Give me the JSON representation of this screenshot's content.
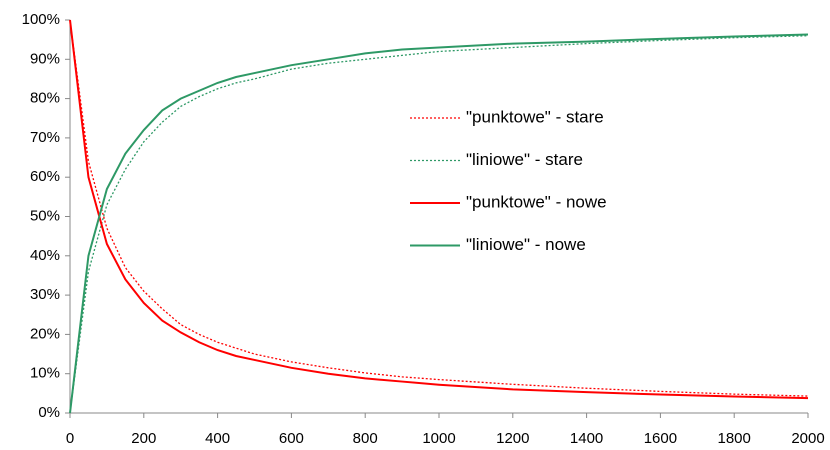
{
  "chart_data": {
    "type": "line",
    "x": [
      0,
      50,
      100,
      150,
      200,
      250,
      300,
      350,
      400,
      450,
      500,
      600,
      700,
      800,
      900,
      1000,
      1200,
      1400,
      1600,
      1800,
      2000
    ],
    "series": [
      {
        "name": "\"punktowe\" - stare",
        "color": "#ff0000",
        "dash": "dotted",
        "values": [
          100,
          64,
          47,
          37,
          31,
          26.5,
          22.5,
          20,
          18,
          16.5,
          15,
          13,
          11.5,
          10.2,
          9.2,
          8.5,
          7.3,
          6.3,
          5.5,
          4.8,
          4.3
        ]
      },
      {
        "name": "\"liniowe\" - stare",
        "color": "#2e9966",
        "dash": "dotted",
        "values": [
          0,
          36,
          53,
          62,
          69,
          74,
          78,
          80.5,
          82.5,
          84,
          85,
          87.5,
          89,
          90,
          91,
          92,
          93,
          94,
          94.8,
          95.5,
          96
        ]
      },
      {
        "name": "\"punktowe\" - nowe",
        "color": "#ff0000",
        "dash": "solid",
        "values": [
          100,
          60,
          43,
          34,
          28,
          23.5,
          20.5,
          18,
          16,
          14.5,
          13.5,
          11.5,
          10,
          8.8,
          8,
          7.2,
          6,
          5.3,
          4.7,
          4.2,
          3.8
        ]
      },
      {
        "name": "\"liniowe\" - nowe",
        "color": "#2e9966",
        "dash": "solid",
        "values": [
          0,
          40,
          57,
          66,
          72,
          77,
          80,
          82,
          84,
          85.5,
          86.5,
          88.5,
          90,
          91.5,
          92.5,
          93,
          94,
          94.5,
          95.2,
          95.8,
          96.3
        ]
      }
    ],
    "xlim": [
      0,
      2000
    ],
    "xticks": [
      0,
      200,
      400,
      600,
      800,
      1000,
      1200,
      1400,
      1600,
      1800,
      2000
    ],
    "ylim": [
      0,
      100
    ],
    "yticks": [
      {
        "value": 0,
        "label": "0%"
      },
      {
        "value": 10,
        "label": "10%"
      },
      {
        "value": 20,
        "label": "20%"
      },
      {
        "value": 30,
        "label": "30%"
      },
      {
        "value": 40,
        "label": "40%"
      },
      {
        "value": 50,
        "label": "50%"
      },
      {
        "value": 60,
        "label": "60%"
      },
      {
        "value": 70,
        "label": "70%"
      },
      {
        "value": 80,
        "label": "80%"
      },
      {
        "value": 90,
        "label": "90%"
      },
      {
        "value": 100,
        "label": "100%"
      }
    ]
  }
}
